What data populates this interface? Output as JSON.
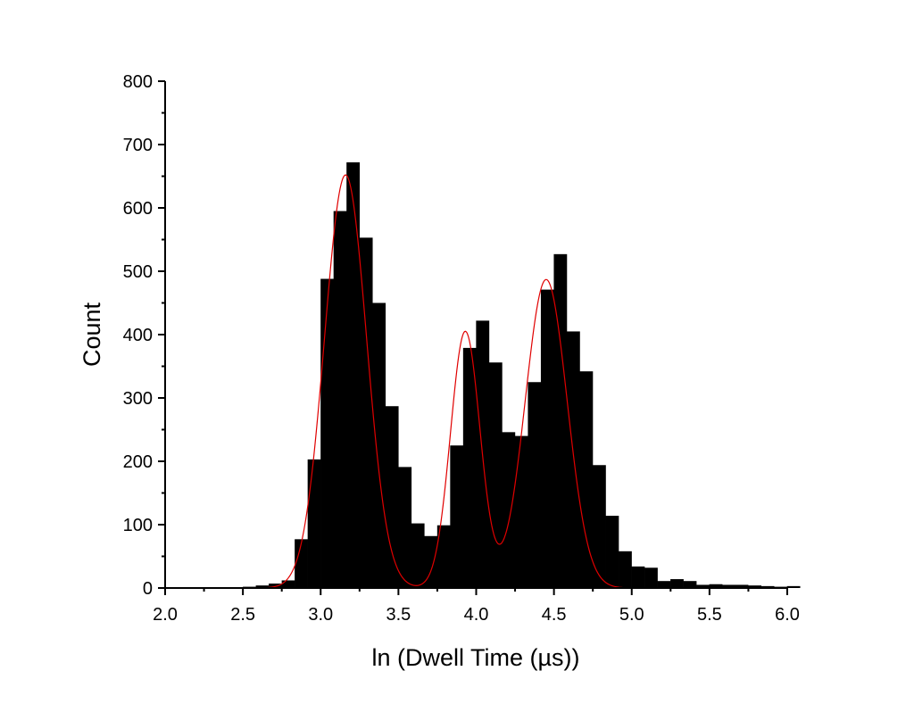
{
  "chart_data": {
    "type": "bar",
    "title": "",
    "xlabel": "ln (Dwell Time (µs))",
    "ylabel": "Count",
    "xlim": [
      2.0,
      6.0
    ],
    "ylim": [
      0,
      800
    ],
    "x_ticks": [
      "2.0",
      "2.5",
      "3.0",
      "3.5",
      "4.0",
      "4.5",
      "5.0",
      "5.5",
      "6.0"
    ],
    "y_ticks": [
      "0",
      "100",
      "200",
      "300",
      "400",
      "500",
      "600",
      "700",
      "800"
    ],
    "bin_width": 0.0833,
    "bin_start": 2.0,
    "values": [
      0,
      0,
      0,
      0,
      1,
      1,
      2,
      4,
      7,
      12,
      77,
      203,
      488,
      595,
      672,
      553,
      450,
      287,
      191,
      102,
      82,
      99,
      225,
      379,
      422,
      356,
      246,
      240,
      325,
      471,
      527,
      405,
      342,
      194,
      114,
      58,
      34,
      32,
      11,
      14,
      11,
      5,
      6,
      5,
      5,
      4,
      3,
      2,
      3
    ],
    "bar_color": "#000000",
    "fit": {
      "type": "sum-of-gaussians",
      "color": "#e00000",
      "components": [
        {
          "center": 3.16,
          "sigma": 0.135,
          "amplitude": 652
        },
        {
          "center": 3.93,
          "sigma": 0.095,
          "amplitude": 405
        },
        {
          "center": 4.45,
          "sigma": 0.135,
          "amplitude": 487
        }
      ]
    },
    "grid": false,
    "legend": "none"
  }
}
